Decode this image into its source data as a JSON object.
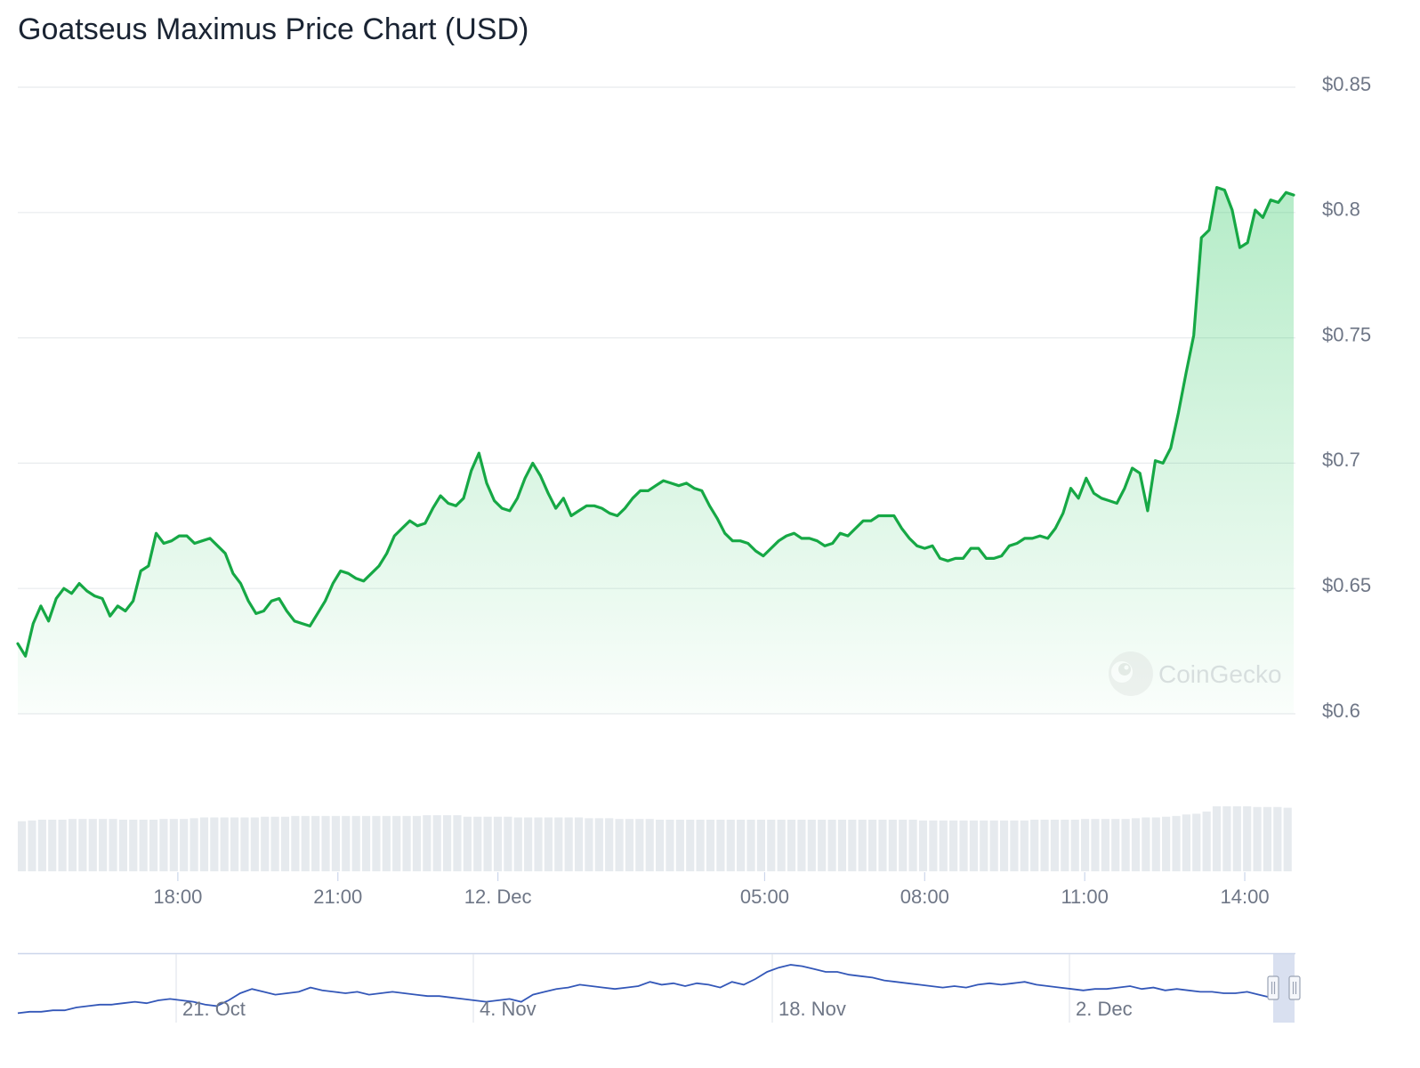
{
  "title": "Goatseus Maximus Price Chart (USD)",
  "watermark": "CoinGecko",
  "colors": {
    "line": "#16a845",
    "area_top": "#16c351",
    "grid": "#e8ebee",
    "axis_text": "#6e7686",
    "volume": "#e6eaee",
    "navigator_line": "#3357b8",
    "navigator_handle": "#ccd6eb"
  },
  "chart_data": [
    {
      "type": "area",
      "title": "Goatseus Maximus Price Chart (USD)",
      "xlabel": "",
      "ylabel": "",
      "ylim": [
        0.6,
        0.85
      ],
      "y_ticks": [
        "$0.85",
        "$0.8",
        "$0.75",
        "$0.7",
        "$0.65",
        "$0.6"
      ],
      "y_tick_values": [
        0.85,
        0.8,
        0.75,
        0.7,
        0.65,
        0.6
      ],
      "x_range_hours": [
        "2024-12-11T15:00",
        "2024-12-12T14:55"
      ],
      "x_ticks": [
        {
          "label": "18:00",
          "time": "2024-12-11T18:00"
        },
        {
          "label": "21:00",
          "time": "2024-12-11T21:00"
        },
        {
          "label": "12. Dec",
          "time": "2024-12-12T00:00"
        },
        {
          "label": "05:00",
          "time": "2024-12-12T05:00"
        },
        {
          "label": "08:00",
          "time": "2024-12-12T08:00"
        },
        {
          "label": "11:00",
          "time": "2024-12-12T11:00"
        },
        {
          "label": "14:00",
          "time": "2024-12-12T14:00"
        }
      ],
      "grid": true,
      "legend": "none",
      "series": [
        {
          "values": [
            0.628,
            0.623,
            0.636,
            0.643,
            0.637,
            0.646,
            0.65,
            0.648,
            0.652,
            0.649,
            0.647,
            0.646,
            0.639,
            0.643,
            0.641,
            0.645,
            0.657,
            0.659,
            0.672,
            0.668,
            0.669,
            0.671,
            0.671,
            0.668,
            0.669,
            0.67,
            0.667,
            0.664,
            0.656,
            0.652,
            0.645,
            0.64,
            0.641,
            0.645,
            0.646,
            0.641,
            0.637,
            0.636,
            0.635,
            0.64,
            0.645,
            0.652,
            0.657,
            0.656,
            0.654,
            0.653,
            0.656,
            0.659,
            0.664,
            0.671,
            0.674,
            0.677,
            0.675,
            0.676,
            0.682,
            0.687,
            0.684,
            0.683,
            0.686,
            0.697,
            0.704,
            0.692,
            0.685,
            0.682,
            0.681,
            0.686,
            0.694,
            0.7,
            0.695,
            0.688,
            0.682,
            0.686,
            0.679,
            0.681,
            0.683,
            0.683,
            0.682,
            0.68,
            0.679,
            0.682,
            0.686,
            0.689,
            0.689,
            0.691,
            0.693,
            0.692,
            0.691,
            0.692,
            0.69,
            0.689,
            0.683,
            0.678,
            0.672,
            0.669,
            0.669,
            0.668,
            0.665,
            0.663,
            0.666,
            0.669,
            0.671,
            0.672,
            0.67,
            0.67,
            0.669,
            0.667,
            0.668,
            0.672,
            0.671,
            0.674,
            0.677,
            0.677,
            0.679,
            0.679,
            0.679,
            0.674,
            0.67,
            0.667,
            0.666,
            0.667,
            0.662,
            0.661,
            0.662,
            0.662,
            0.666,
            0.666,
            0.662,
            0.662,
            0.663,
            0.667,
            0.668,
            0.67,
            0.67,
            0.671,
            0.67,
            0.674,
            0.68,
            0.69,
            0.686,
            0.694,
            0.688,
            0.686,
            0.685,
            0.684,
            0.69,
            0.698,
            0.696,
            0.681,
            0.701,
            0.7,
            0.706,
            0.72,
            0.736,
            0.751,
            0.79,
            0.793,
            0.81,
            0.809,
            0.801,
            0.786,
            0.788,
            0.801,
            0.798,
            0.805,
            0.804,
            0.808,
            0.807
          ]
        }
      ]
    },
    {
      "type": "bar",
      "title": "",
      "xlabel": "",
      "ylabel": "",
      "values": [
        67,
        68,
        69,
        69,
        69,
        70,
        70,
        70,
        70,
        70,
        69,
        69,
        69,
        69,
        70,
        70,
        70,
        71,
        72,
        72,
        72,
        72,
        72,
        72,
        73,
        73,
        73,
        74,
        74,
        74,
        74,
        74,
        74,
        74,
        74,
        74,
        74,
        74,
        74,
        74,
        75,
        75,
        75,
        75,
        73,
        73,
        73,
        73,
        73,
        72,
        72,
        72,
        72,
        72,
        72,
        72,
        71,
        71,
        71,
        70,
        70,
        70,
        70,
        69,
        69,
        69,
        69,
        69,
        69,
        69,
        69,
        69,
        69,
        69,
        69,
        69,
        69,
        69,
        69,
        69,
        69,
        69,
        69,
        69,
        69,
        69,
        69,
        69,
        69,
        68,
        68,
        68,
        68,
        68,
        68,
        68,
        68,
        68,
        68,
        68,
        69,
        69,
        69,
        69,
        69,
        70,
        70,
        70,
        70,
        70,
        71,
        72,
        72,
        73,
        74,
        76,
        77,
        80,
        87,
        87,
        87,
        87,
        86,
        86,
        86,
        85
      ]
    },
    {
      "type": "line",
      "title": "",
      "xlabel": "",
      "ylabel": "",
      "x_ticks": [
        "21. Oct",
        "4. Nov",
        "18. Nov",
        "2. Dec"
      ],
      "values": [
        0.16,
        0.17,
        0.17,
        0.18,
        0.18,
        0.2,
        0.21,
        0.22,
        0.22,
        0.23,
        0.24,
        0.23,
        0.25,
        0.26,
        0.25,
        0.24,
        0.22,
        0.21,
        0.25,
        0.3,
        0.33,
        0.31,
        0.29,
        0.3,
        0.31,
        0.34,
        0.32,
        0.31,
        0.3,
        0.31,
        0.29,
        0.3,
        0.31,
        0.3,
        0.29,
        0.28,
        0.28,
        0.27,
        0.26,
        0.25,
        0.24,
        0.25,
        0.26,
        0.24,
        0.29,
        0.31,
        0.33,
        0.34,
        0.36,
        0.35,
        0.34,
        0.33,
        0.34,
        0.35,
        0.38,
        0.36,
        0.37,
        0.35,
        0.37,
        0.36,
        0.34,
        0.38,
        0.36,
        0.4,
        0.45,
        0.48,
        0.5,
        0.49,
        0.47,
        0.45,
        0.45,
        0.43,
        0.42,
        0.41,
        0.39,
        0.38,
        0.37,
        0.36,
        0.35,
        0.34,
        0.35,
        0.34,
        0.36,
        0.37,
        0.36,
        0.37,
        0.38,
        0.36,
        0.35,
        0.34,
        0.33,
        0.32,
        0.33,
        0.33,
        0.34,
        0.35,
        0.33,
        0.34,
        0.32,
        0.33,
        0.32,
        0.31,
        0.31,
        0.3,
        0.3,
        0.31,
        0.29,
        0.27
      ]
    }
  ]
}
